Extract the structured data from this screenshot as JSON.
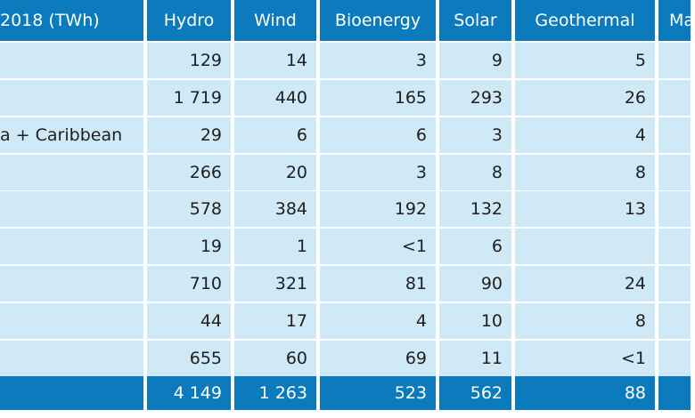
{
  "colors": {
    "header_bg": "#0c7bbd",
    "row_bg": "#cfe9f6",
    "header_text": "#ffffff",
    "body_text": "#1f1f1f"
  },
  "table": {
    "headers": [
      "2018 (TWh)",
      "Hydro",
      "Wind",
      "Bioenergy",
      "Solar",
      "Geothermal",
      "Ma"
    ],
    "rows": [
      [
        "",
        "129",
        "14",
        "3",
        "9",
        "5",
        ""
      ],
      [
        "",
        "1 719",
        "440",
        "165",
        "293",
        "26",
        ""
      ],
      [
        "a + Caribbean",
        "29",
        "6",
        "6",
        "3",
        "4",
        ""
      ],
      [
        "",
        "266",
        "20",
        "3",
        "8",
        "8",
        ""
      ],
      [
        "",
        "578",
        "384",
        "192",
        "132",
        "13",
        ""
      ],
      [
        "",
        "19",
        "1",
        "<1",
        "6",
        "",
        ""
      ],
      [
        "",
        "710",
        "321",
        "81",
        "90",
        "24",
        ""
      ],
      [
        "",
        "44",
        "17",
        "4",
        "10",
        "8",
        ""
      ],
      [
        "",
        "655",
        "60",
        "69",
        "11",
        "<1",
        ""
      ]
    ],
    "total": [
      "",
      "4 149",
      "1 263",
      "523",
      "562",
      "88",
      ""
    ]
  }
}
